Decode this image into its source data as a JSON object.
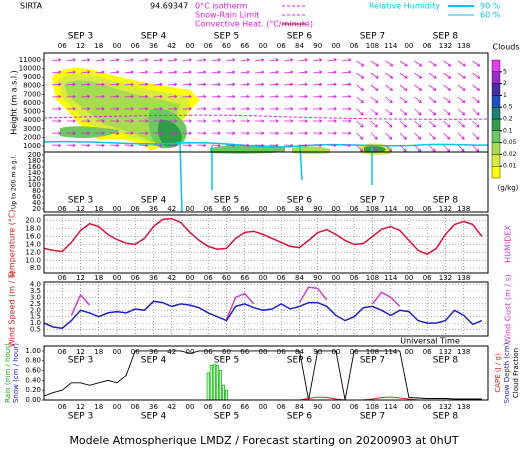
{
  "header": {
    "site": "SIRTA",
    "coord": "94.69347",
    "legend": [
      "0°C isotherm",
      "Snow-Rain Limit",
      "Convective Heat. (°C/minute)"
    ],
    "rh_title": "Relative Humidity",
    "rh_levels": [
      "90 %",
      "60 %"
    ]
  },
  "time_axis": {
    "xlim": [
      0,
      146
    ],
    "xticks": [
      {
        "value": 6,
        "label": "06"
      },
      12,
      18,
      {
        "value": 24,
        "label": "00"
      },
      {
        "value": 30,
        "label": "06"
      },
      36,
      42,
      {
        "value": 48,
        "label": "00"
      },
      {
        "value": 54,
        "label": "06"
      },
      60,
      66,
      {
        "value": 72,
        "label": "00"
      },
      {
        "value": 78,
        "label": "06"
      },
      84,
      90,
      {
        "value": 96,
        "label": "00"
      },
      {
        "value": 102,
        "label": "06"
      },
      108,
      114,
      {
        "value": 120,
        "label": "00"
      },
      {
        "value": 126,
        "label": "06"
      },
      132,
      138
    ],
    "days": [
      {
        "value": 12,
        "label": "SEP 3"
      },
      {
        "value": 36,
        "label": "SEP 4"
      },
      {
        "value": 60,
        "label": "SEP 5"
      },
      {
        "value": 84,
        "label": "SEP 6"
      },
      {
        "value": 108,
        "label": "SEP 7"
      },
      {
        "value": 132,
        "label": "SEP 8"
      }
    ],
    "xlabel": "Universal Time"
  },
  "chart_data": [
    {
      "type": "contour",
      "ylabel": "Height (m a.s.l.)",
      "ylim": [
        300,
        11800
      ],
      "yticks": [
        1000,
        2000,
        3000,
        4000,
        5000,
        6000,
        7000,
        8000,
        9000,
        10000,
        11000
      ],
      "y2label": "Up to 200 m a.g.l.",
      "y2lim": [
        10,
        210
      ],
      "y2ticks": [
        20,
        40,
        60,
        80,
        100,
        120,
        140,
        160,
        180,
        200
      ],
      "colorbar": {
        "title": "Clouds",
        "unit": "(g/kg)",
        "ticks": [
          0.01,
          0.02,
          0.05,
          0.1,
          0.2,
          0.5,
          1,
          2,
          5
        ],
        "colors": [
          "#ffff00",
          "#d8ec3c",
          "#a8dc50",
          "#6cc860",
          "#2e9e48",
          "#1a8078",
          "#2050c0",
          "#4a2aa8",
          "#9a2ac8",
          "#e040f0"
        ]
      }
    },
    {
      "type": "line",
      "ylabel": "Temperature (°C)",
      "y2label": "HUMIDEX",
      "ylim": [
        6.8,
        21.4
      ],
      "yticks": [
        {
          "value": 8,
          "label": "8.0"
        },
        {
          "value": 10,
          "label": "10.0"
        },
        {
          "value": 12,
          "label": "12.0"
        },
        {
          "value": 14,
          "label": "14.0"
        },
        {
          "value": 16,
          "label": "16.0"
        },
        {
          "value": 18,
          "label": "18.0"
        },
        {
          "value": 20,
          "label": "20.0"
        }
      ],
      "grid": true,
      "x": [
        0,
        3,
        6,
        9,
        12,
        15,
        18,
        21,
        24,
        27,
        30,
        33,
        36,
        39,
        42,
        45,
        48,
        51,
        54,
        57,
        60,
        63,
        66,
        69,
        72,
        75,
        78,
        81,
        84,
        87,
        90,
        93,
        96,
        99,
        102,
        105,
        108,
        111,
        114,
        117,
        120,
        123,
        126,
        129,
        132,
        135,
        138,
        141,
        144
      ],
      "series": [
        {
          "name": "Temperature",
          "color": "#e0103c",
          "values": [
            13.0,
            12.5,
            12.2,
            14.5,
            17.5,
            19.2,
            18.5,
            16.5,
            15.2,
            14.3,
            14.0,
            15.5,
            18.5,
            20.3,
            20.5,
            19.5,
            17.0,
            15.0,
            13.5,
            12.8,
            13.0,
            15.5,
            17.0,
            17.3,
            16.5,
            15.5,
            14.5,
            13.5,
            13.2,
            15.0,
            17.0,
            17.7,
            16.5,
            15.0,
            14.0,
            14.2,
            16.0,
            17.8,
            18.5,
            17.5,
            15.0,
            12.5,
            11.5,
            13.0,
            16.5,
            19.0,
            19.8,
            19.0,
            16.0
          ]
        }
      ]
    },
    {
      "type": "line",
      "ylabel": "Wind Speed (m / s)",
      "y2label": "Wind Gust (m / s)",
      "ylim": [
        0,
        4.2
      ],
      "yticks": [
        0.5,
        {
          "value": 1,
          "label": "1.0"
        },
        1.5,
        {
          "value": 2,
          "label": "2.0"
        },
        2.5,
        {
          "value": 3,
          "label": "3.0"
        },
        3.5,
        {
          "value": 4,
          "label": "4.0"
        }
      ],
      "grid": true,
      "x": [
        0,
        3,
        6,
        9,
        12,
        15,
        18,
        21,
        24,
        27,
        30,
        33,
        36,
        39,
        42,
        45,
        48,
        51,
        54,
        57,
        60,
        63,
        66,
        69,
        72,
        75,
        78,
        81,
        84,
        87,
        90,
        93,
        96,
        99,
        102,
        105,
        108,
        111,
        114,
        117,
        120,
        123,
        126,
        129,
        132,
        135,
        138,
        141,
        144
      ],
      "series": [
        {
          "name": "Wind Gust",
          "color": "#d040d0",
          "values": [
            null,
            null,
            null,
            1.6,
            3.2,
            2.4,
            null,
            null,
            null,
            null,
            null,
            null,
            null,
            null,
            null,
            null,
            null,
            null,
            null,
            null,
            1.3,
            3.0,
            3.3,
            2.5,
            null,
            null,
            null,
            null,
            2.6,
            3.8,
            3.7,
            2.8,
            null,
            null,
            null,
            null,
            2.5,
            3.4,
            3.0,
            2.3,
            null,
            null,
            null,
            null,
            null,
            null,
            null,
            null,
            null
          ]
        },
        {
          "name": "Wind Speed",
          "color": "#2020c8",
          "values": [
            1.0,
            0.7,
            0.6,
            1.2,
            2.0,
            1.8,
            1.5,
            1.8,
            1.9,
            1.8,
            2.1,
            2.0,
            2.7,
            2.6,
            2.3,
            2.5,
            2.4,
            2.2,
            1.8,
            1.5,
            1.2,
            2.3,
            2.5,
            2.2,
            2.0,
            2.1,
            2.5,
            2.1,
            2.3,
            2.6,
            2.6,
            2.3,
            1.6,
            1.2,
            1.5,
            2.2,
            2.3,
            2.0,
            1.6,
            2.0,
            1.9,
            1.2,
            1.0,
            1.0,
            1.2,
            2.0,
            1.6,
            0.9,
            1.2
          ]
        }
      ]
    },
    {
      "type": "bar-line",
      "ylabel": [
        "Rain (mm / hour)",
        "Snow (cm / hour)"
      ],
      "y2label": [
        "CAPE (J / g)",
        "Snow Depth (cm)",
        "Cloud Fraction"
      ],
      "y2colors": [
        "#e02020",
        "#2020c8",
        "#000000"
      ],
      "ycolors": [
        "#22aa22",
        "#2020c8"
      ],
      "ylim": [
        0,
        1.1
      ],
      "yticks": [
        {
          "value": 0,
          "label": "0.00"
        },
        {
          "value": 0.2,
          "label": "0.20"
        },
        {
          "value": 0.4,
          "label": "0.40"
        },
        {
          "value": 0.6,
          "label": "0.60"
        },
        {
          "value": 0.8,
          "label": "0.80"
        },
        {
          "value": 1,
          "label": "1.00"
        }
      ],
      "rain": {
        "color": "#22cc22",
        "x": [
          54,
          55,
          56,
          57,
          58,
          59,
          60
        ],
        "values": [
          0.55,
          0.7,
          0.72,
          0.7,
          0.6,
          0.3,
          0.2
        ]
      },
      "x": [
        0,
        3,
        6,
        9,
        12,
        15,
        18,
        21,
        24,
        27,
        30,
        33,
        36,
        39,
        42,
        45,
        48,
        51,
        54,
        57,
        60,
        63,
        66,
        69,
        72,
        75,
        78,
        81,
        84,
        87,
        90,
        93,
        96,
        99,
        102,
        105,
        108,
        111,
        114,
        117,
        120,
        123,
        126,
        129,
        132,
        135,
        138,
        141,
        144
      ],
      "series": [
        {
          "name": "Cloud Fraction",
          "color": "#000000",
          "values": [
            0.08,
            0.15,
            0.2,
            0.35,
            0.35,
            0.3,
            0.35,
            0.4,
            0.35,
            0.5,
            1.0,
            1.0,
            1.0,
            1.0,
            1.0,
            1.0,
            0.95,
            1.0,
            1.0,
            1.0,
            1.0,
            1.0,
            1.0,
            1.0,
            1.0,
            1.0,
            1.0,
            1.0,
            1.0,
            0.0,
            1.0,
            1.0,
            1.0,
            0.0,
            1.0,
            1.0,
            1.0,
            1.0,
            1.0,
            1.0,
            0.05,
            0.04,
            0.03,
            0.03,
            0.03,
            0.02,
            0.02,
            0.02,
            0.02
          ]
        },
        {
          "name": "CAPE",
          "color": "#e02020",
          "values": [
            0,
            0,
            0,
            0,
            0,
            0,
            0,
            0,
            0,
            0,
            0,
            0,
            0,
            0,
            0,
            0,
            0,
            0,
            0,
            0,
            0,
            0,
            0,
            0,
            0,
            0,
            0,
            0,
            0,
            0.03,
            0.06,
            0.05,
            0.02,
            0,
            0,
            0,
            0.02,
            0.05,
            0.06,
            0.04,
            0.02,
            0,
            0,
            0,
            0,
            0,
            0,
            0,
            0
          ]
        }
      ]
    }
  ],
  "footer": "Modele Atmospherique LMDZ / Forecast starting on 20200903 at 0hUT"
}
